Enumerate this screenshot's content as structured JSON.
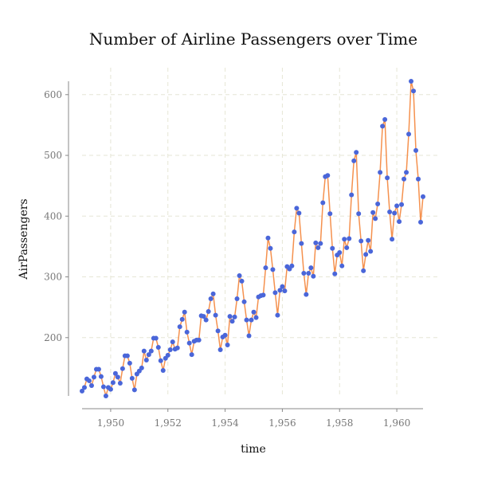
{
  "chart_data": {
    "type": "line",
    "title": "Number of Airline Passengers over Time",
    "xlabel": "time",
    "ylabel": "AirPassengers",
    "x_start": 1949.0,
    "x_step": 0.0833333333,
    "xlim": [
      1949.0,
      1960.9167
    ],
    "ylim": [
      104,
      622
    ],
    "x_ticks": [
      1950,
      1952,
      1954,
      1956,
      1958,
      1960
    ],
    "x_tick_labels": [
      "1,950",
      "1,952",
      "1,954",
      "1,956",
      "1,958",
      "1,960"
    ],
    "y_ticks": [
      200,
      300,
      400,
      500,
      600
    ],
    "y_tick_labels": [
      "200",
      "300",
      "400",
      "500",
      "600"
    ],
    "grid": true,
    "legend": "none",
    "line_color": "#f5914e",
    "marker_color": "#4a66d9",
    "series": [
      {
        "values": [
          112,
          118,
          132,
          129,
          121,
          135,
          148,
          148,
          136,
          119,
          104,
          118,
          115,
          126,
          141,
          135,
          125,
          149,
          170,
          170,
          158,
          133,
          114,
          140,
          145,
          150,
          178,
          163,
          172,
          178,
          199,
          199,
          184,
          162,
          146,
          166,
          171,
          180,
          193,
          181,
          183,
          218,
          230,
          242,
          209,
          191,
          172,
          194,
          196,
          196,
          236,
          235,
          229,
          243,
          264,
          272,
          237,
          211,
          180,
          201,
          204,
          188,
          235,
          227,
          234,
          264,
          302,
          293,
          259,
          229,
          203,
          229,
          242,
          233,
          267,
          269,
          270,
          315,
          364,
          347,
          312,
          274,
          237,
          278,
          284,
          277,
          317,
          313,
          318,
          374,
          413,
          405,
          355,
          306,
          271,
          306,
          315,
          301,
          356,
          348,
          355,
          422,
          465,
          467,
          404,
          347,
          305,
          336,
          340,
          318,
          362,
          348,
          363,
          435,
          491,
          505,
          404,
          359,
          310,
          337,
          360,
          342,
          406,
          396,
          420,
          472,
          548,
          559,
          463,
          407,
          362,
          405,
          417,
          391,
          419,
          461,
          472,
          535,
          622,
          606,
          508,
          461,
          390,
          432
        ]
      }
    ]
  }
}
